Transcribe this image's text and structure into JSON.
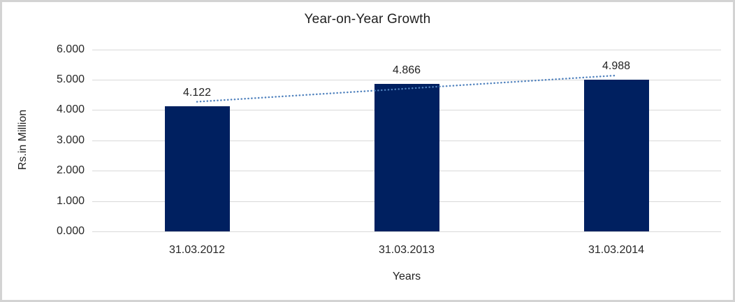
{
  "chart_data": {
    "type": "bar",
    "title": "Year-on-Year Growth",
    "categories": [
      "31.03.2012",
      "31.03.2013",
      "31.03.2014"
    ],
    "values": [
      4.122,
      4.866,
      4.988
    ],
    "value_labels": [
      "4.122",
      "4.866",
      "4.988"
    ],
    "xlabel": "Years",
    "ylabel": "Rs.in Million",
    "ylim": [
      0,
      6
    ],
    "ytick_step": 1,
    "ytick_labels": [
      "0.000",
      "1.000",
      "2.000",
      "3.000",
      "4.000",
      "5.000",
      "6.000"
    ],
    "grid": true,
    "legend_position": "none",
    "has_trendline": true,
    "trendline_style": "dotted",
    "colors": {
      "bar": "#002060",
      "trendline": "#4f81bd",
      "gridline": "#d9d9d9",
      "frame_border": "#d3d3d3",
      "text": "#1f1f1f",
      "background": "#ffffff"
    }
  }
}
